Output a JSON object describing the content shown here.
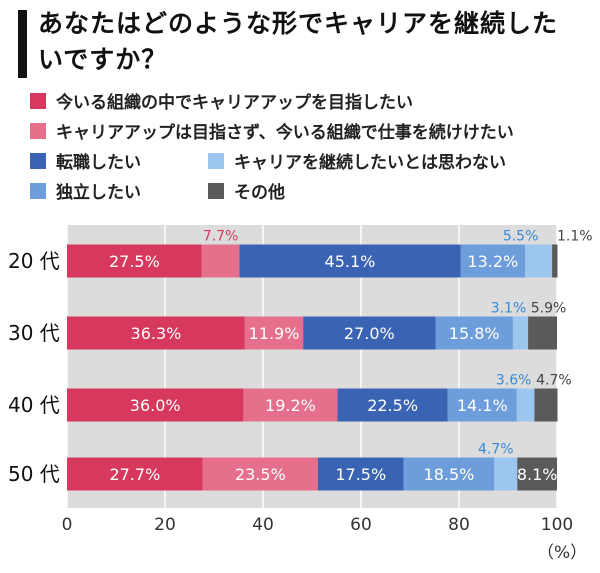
{
  "title": "あなたはどのような形でキャリアを継続したいですか？",
  "legend": [
    {
      "label": "今いる組織の中でキャリアアップを目指したい",
      "color": "#d6395d"
    },
    {
      "label": "キャリアアップは目指さず、今いる組織で仕事を続けけたい",
      "color": "#e66f8c"
    },
    {
      "label": "転職したい",
      "color": "#3a63b3"
    },
    {
      "label": "キャリアを継続したいとは思わない",
      "color": "#9cc6ee"
    },
    {
      "label": "独立したい",
      "color": "#6e9ddb"
    },
    {
      "label": "その他",
      "color": "#5a5a5a"
    }
  ],
  "unit_label": "（%）",
  "chart_data": {
    "type": "bar",
    "orientation": "horizontal-stacked",
    "categories": [
      "20 代",
      "30 代",
      "40 代",
      "50 代"
    ],
    "xlim": [
      0,
      100
    ],
    "xticks": [
      "0",
      "20",
      "40",
      "60",
      "80",
      "100"
    ],
    "background": "#dcdcdc",
    "grid": true,
    "series": [
      {
        "name": "今いる組織の中でキャリアアップを目指したい",
        "color": "#d6395d",
        "values": [
          27.5,
          36.3,
          36.0,
          27.7
        ],
        "labels": [
          "27.5%",
          "36.3%",
          "36.0%",
          "27.7%"
        ]
      },
      {
        "name": "キャリアアップは目指さず、今いる組織で仕事を続けけたい",
        "color": "#e66f8c",
        "values": [
          7.7,
          11.9,
          19.2,
          23.5
        ],
        "labels": [
          "7.7%",
          "11.9%",
          "19.2%",
          "23.5%"
        ]
      },
      {
        "name": "転職したい",
        "color": "#3a63b3",
        "values": [
          45.1,
          27.0,
          22.5,
          17.5
        ],
        "labels": [
          "45.1%",
          "27.0%",
          "22.5%",
          "17.5%"
        ]
      },
      {
        "name": "独立したい",
        "color": "#6e9ddb",
        "values": [
          13.2,
          15.8,
          14.1,
          18.5
        ],
        "labels": [
          "13.2%",
          "15.8%",
          "14.1%",
          "18.5%"
        ]
      },
      {
        "name": "キャリアを継続したいとは思わない",
        "color": "#9cc6ee",
        "values": [
          5.5,
          3.1,
          3.6,
          4.7
        ],
        "labels": [
          "5.5%",
          "3.1%",
          "3.6%",
          "4.7%"
        ]
      },
      {
        "name": "その他",
        "color": "#5a5a5a",
        "values": [
          1.1,
          5.9,
          4.7,
          8.1
        ],
        "labels": [
          "1.1%",
          "5.9%",
          "4.7%",
          "8.1%"
        ]
      }
    ]
  }
}
